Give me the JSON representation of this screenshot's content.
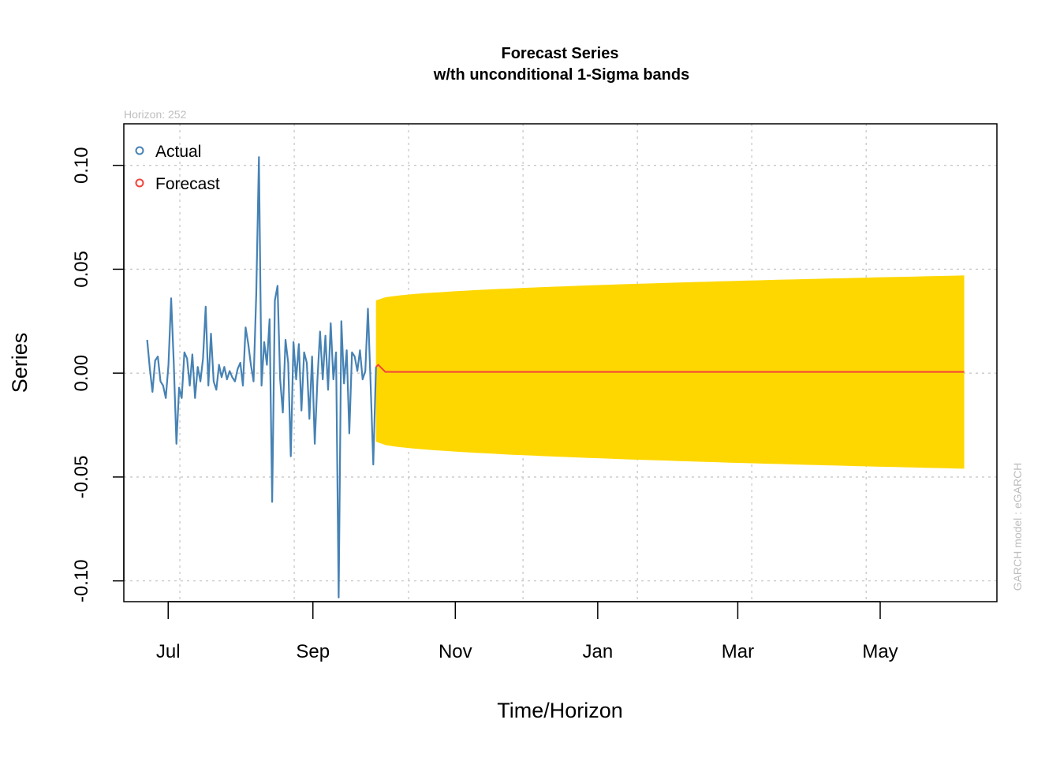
{
  "chart_data": {
    "type": "line",
    "title": "Forecast Series",
    "subtitle": "w/th unconditional 1-Sigma bands",
    "xlabel": "Time/Horizon",
    "ylabel": "Series",
    "horizon_note": "Horizon: 252",
    "model_note": "GARCH model :  eGARCH",
    "xlim": [
      "2015-06-12",
      "2016-06-20"
    ],
    "ylim": [
      -0.11,
      0.12
    ],
    "x_ticks": [
      {
        "date": "2015-07-01",
        "label": "Jul"
      },
      {
        "date": "2015-09-01",
        "label": "Sep"
      },
      {
        "date": "2015-11-01",
        "label": "Nov"
      },
      {
        "date": "2016-01-01",
        "label": "Jan"
      },
      {
        "date": "2016-03-01",
        "label": "Mar"
      },
      {
        "date": "2016-05-01",
        "label": "May"
      }
    ],
    "y_ticks": [
      {
        "value": 0.1,
        "label": "0.10"
      },
      {
        "value": 0.05,
        "label": "0.05"
      },
      {
        "value": 0.0,
        "label": "0.00"
      },
      {
        "value": -0.05,
        "label": "-0.05"
      },
      {
        "value": -0.1,
        "label": "-0.10"
      }
    ],
    "x_grid_dates": [
      "2015-07-06",
      "2015-08-24",
      "2015-10-12",
      "2015-11-30",
      "2016-01-18",
      "2016-03-07",
      "2016-04-25"
    ],
    "grid": true,
    "legend": {
      "position": "top-left",
      "items": [
        {
          "label": "Actual",
          "color": "#4682b4"
        },
        {
          "label": "Forecast",
          "color": "#f4433c"
        }
      ]
    },
    "series": [
      {
        "name": "Actual",
        "color": "#4682b4",
        "start": "2015-06-22",
        "end": "2015-09-28",
        "values": [
          0.016,
          0.002,
          -0.009,
          0.006,
          0.008,
          -0.004,
          -0.006,
          -0.012,
          0.004,
          0.036,
          0.005,
          -0.034,
          -0.007,
          -0.012,
          0.01,
          0.007,
          -0.006,
          0.009,
          -0.012,
          0.003,
          -0.004,
          0.007,
          0.032,
          -0.006,
          0.019,
          -0.004,
          -0.008,
          0.004,
          -0.002,
          0.003,
          -0.003,
          0.001,
          -0.002,
          -0.004,
          0.002,
          0.005,
          -0.006,
          0.022,
          0.014,
          0.004,
          -0.004,
          0.038,
          0.104,
          -0.006,
          0.015,
          0.004,
          0.026,
          -0.062,
          0.035,
          0.042,
          -0.003,
          -0.019,
          0.016,
          0.005,
          -0.04,
          0.015,
          -0.003,
          0.014,
          -0.018,
          0.01,
          0.005,
          -0.022,
          0.008,
          -0.034,
          -0.003,
          0.02,
          -0.003,
          0.018,
          -0.008,
          0.024,
          -0.003,
          0.01,
          -0.108,
          0.025,
          -0.005,
          0.011,
          -0.029,
          0.01,
          0.008,
          0.001,
          0.011,
          -0.003,
          0.001,
          0.031,
          -0.005,
          -0.044,
          0.003
        ]
      },
      {
        "name": "Forecast",
        "color": "#f4433c",
        "start": "2015-09-29",
        "end": "2016-06-06",
        "values": [
          0.004,
          0.0006
        ]
      },
      {
        "name": "1-Sigma band",
        "color": "#ffd700",
        "start": "2015-09-28",
        "end": "2016-06-06",
        "upper_start": 0.035,
        "upper_end": 0.047,
        "lower_start": -0.033,
        "lower_end": -0.046
      }
    ]
  }
}
